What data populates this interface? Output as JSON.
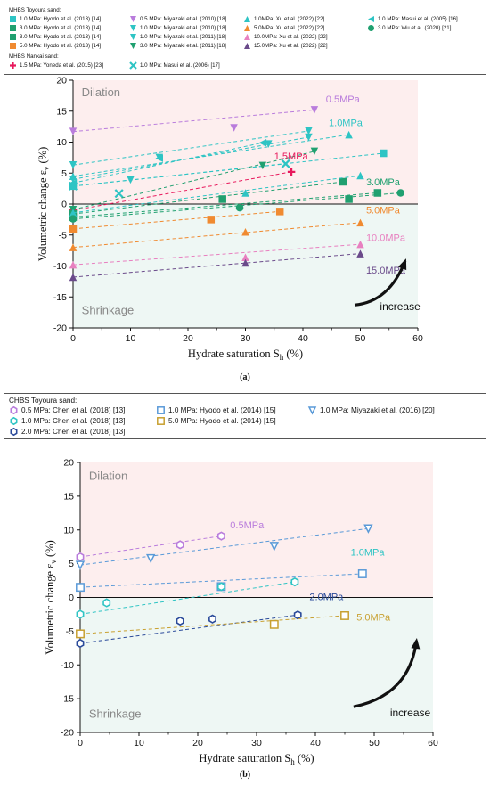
{
  "figure_a": {
    "panel_label": "(a)",
    "legend": {
      "group1_title": "MHBS Toyoura sand:",
      "group2_title": "MHBS Nankai sand:",
      "entries": [
        {
          "label": "1.0 MPa: Hyodo et al. (2013) [14]",
          "marker": "square",
          "color": "#2ec4c4"
        },
        {
          "label": "3.0 MPa: Hyodo et al. (2013) [14]",
          "marker": "square",
          "color": "#20a070"
        },
        {
          "label": "3.0 MPa: Hyodo et al. (2013) [14]",
          "marker": "square",
          "color": "#20a070"
        },
        {
          "label": "5.0 MPa: Hyodo et al. (2013) [14]",
          "marker": "square",
          "color": "#f08a30"
        },
        {
          "label": "0.5 MPa: Miyazaki et al. (2010) [18]",
          "marker": "tri-down",
          "color": "#b97cdc"
        },
        {
          "label": "1.0 MPa: Miyazaki et al. (2010) [18]",
          "marker": "tri-down",
          "color": "#2ec4c4"
        },
        {
          "label": "1.0 MPa: Miyazaki et al. (2011) [18]",
          "marker": "tri-down",
          "color": "#2ec4c4"
        },
        {
          "label": "3.0 MPa: Miyazaki et al. (2011) [18]",
          "marker": "tri-down",
          "color": "#20a070"
        },
        {
          "label": "1.0MPa: Xu et al. (2022) [22]",
          "marker": "tri-up",
          "color": "#2ec4c4"
        },
        {
          "label": "5.0MPa: Xu et al. (2022) [22]",
          "marker": "tri-up",
          "color": "#f08a30"
        },
        {
          "label": "10.0MPa: Xu et al. (2022) [22]",
          "marker": "tri-up",
          "color": "#e880c0"
        },
        {
          "label": "15.0MPa: Xu et al. (2022) [22]",
          "marker": "tri-up",
          "color": "#6a4a8a"
        },
        {
          "label": "1.0 MPa: Masui et al. (2005) [16]",
          "marker": "tri-left",
          "color": "#2ec4c4"
        },
        {
          "label": "3.0 MPa: Wu et al. (2020) [21]",
          "marker": "circle",
          "color": "#20a070"
        },
        {
          "label": "1.5 MPa: Yoneda et al. (2015) [23]",
          "marker": "cross",
          "color": "#e8185c"
        },
        {
          "label": "1.0 MPa: Masui et al. (2006) [17]",
          "marker": "x",
          "color": "#2ec4c4"
        }
      ]
    },
    "chart_data": {
      "type": "scatter",
      "xlabel": "Hydrate saturation S",
      "xlabel_sub": "h",
      "xlabel_unit": " (%)",
      "ylabel": "Volumetric change ε",
      "ylabel_sub": "v",
      "ylabel_unit": " (%)",
      "xlim": [
        0,
        60
      ],
      "ylim": [
        -20,
        20
      ],
      "xticks": [
        0,
        10,
        20,
        30,
        40,
        50,
        60
      ],
      "yticks": [
        -20,
        -15,
        -10,
        -5,
        0,
        5,
        10,
        15,
        20
      ],
      "region_labels": {
        "top": "Dilation",
        "bottom": "Shrinkage"
      },
      "arrow_label": "increase",
      "region_colors": {
        "top": "#fdeeee",
        "bottom": "#eef7f4"
      },
      "series": [
        {
          "name": "0.5 MPa: Miyazaki et al. (2010) [18]",
          "marker": "tri-down",
          "color": "#b97cdc",
          "x": [
            0,
            28,
            42
          ],
          "y": [
            11.7,
            12.3,
            15.2
          ]
        },
        {
          "name": "1.0 MPa: Miyazaki et al. (2010) [18]",
          "marker": "tri-down",
          "color": "#2ec4c4",
          "x": [
            0,
            15,
            34,
            41
          ],
          "y": [
            6.3,
            7.5,
            9.7,
            11.8
          ]
        },
        {
          "name": "1.0 MPa: Hyodo et al. (2013) [14]",
          "marker": "square",
          "color": "#2ec4c4",
          "x": [
            0,
            54
          ],
          "y": [
            2.9,
            8.2
          ]
        },
        {
          "name": "1.0 MPa: Miyazaki et al. (2011) [18]",
          "marker": "tri-down",
          "color": "#2ec4c4",
          "x": [
            0,
            10,
            41
          ],
          "y": [
            4.0,
            3.9,
            10.8
          ]
        },
        {
          "name": "1.0MPa: Xu et al. (2022) [22]",
          "marker": "tri-up",
          "color": "#2ec4c4",
          "x": [
            0,
            48
          ],
          "y": [
            4.5,
            11.2
          ]
        },
        {
          "name": "1.0 MPa: Masui et al. (2005) [16]",
          "marker": "tri-left",
          "color": "#2ec4c4",
          "x": [
            0,
            15,
            33
          ],
          "y": [
            3.4,
            7.4,
            9.9
          ]
        },
        {
          "name": "1.0 MPa: Masui et al. (2006) [17]",
          "marker": "x",
          "color": "#2ec4c4",
          "x": [
            0,
            8,
            37
          ],
          "y": [
            2.9,
            1.7,
            6.5
          ]
        },
        {
          "name": "1.5 MPa: Yoneda et al. (2015) [23]",
          "marker": "cross",
          "color": "#e8185c",
          "x": [
            0,
            38
          ],
          "y": [
            -1.0,
            5.2
          ]
        },
        {
          "name": "3.0 MPa: Miyazaki et al. (2011) [18]",
          "marker": "tri-down",
          "color": "#20a070",
          "x": [
            0,
            33,
            42
          ],
          "y": [
            -0.9,
            6.2,
            8.5
          ]
        },
        {
          "name": "3.0 MPa: Hyodo et al. (2013) [14]",
          "marker": "square",
          "color": "#20a070",
          "x": [
            0,
            26,
            47
          ],
          "y": [
            -1.6,
            0.8,
            3.6
          ]
        },
        {
          "name": "3.0 MPa: Hyodo et al. (2013) [14] (b)",
          "marker": "square",
          "color": "#20a070",
          "x": [
            0,
            48,
            53
          ],
          "y": [
            -2.1,
            0.8,
            1.8
          ]
        },
        {
          "name": "1.0MPa: Xu et al. (2022) [22] (b)",
          "marker": "tri-up",
          "color": "#2ec4c4",
          "x": [
            0,
            30,
            50
          ],
          "y": [
            -1.4,
            1.8,
            4.6
          ]
        },
        {
          "name": "3.0 MPa: Wu et al. (2020) [21]",
          "marker": "circle",
          "color": "#20a070",
          "x": [
            0,
            29,
            57
          ],
          "y": [
            -2.4,
            -0.6,
            1.8
          ]
        },
        {
          "name": "5.0 MPa: Hyodo et al. (2013) [14]",
          "marker": "square",
          "color": "#f08a30",
          "x": [
            0,
            24,
            36
          ],
          "y": [
            -4.0,
            -2.5,
            -1.2
          ]
        },
        {
          "name": "5.0MPa: Xu et al. (2022) [22]",
          "marker": "tri-up",
          "color": "#f08a30",
          "x": [
            0,
            30,
            50
          ],
          "y": [
            -7.0,
            -4.5,
            -3.0
          ]
        },
        {
          "name": "10.0MPa: Xu et al. (2022) [22]",
          "marker": "tri-up",
          "color": "#e880c0",
          "x": [
            0,
            30,
            50
          ],
          "y": [
            -9.8,
            -8.6,
            -6.5
          ]
        },
        {
          "name": "15.0MPa: Xu et al. (2022) [22]",
          "marker": "tri-up",
          "color": "#6a4a8a",
          "x": [
            0,
            30,
            50
          ],
          "y": [
            -11.8,
            -9.5,
            -8.0
          ]
        }
      ],
      "annotations": [
        {
          "text": "0.5MPa",
          "x": 44,
          "y": 16.4,
          "color": "#b97cdc"
        },
        {
          "text": "1.0MPa",
          "x": 44.5,
          "y": 12.6,
          "color": "#2ec4c4"
        },
        {
          "text": "1.5MPa",
          "x": 35,
          "y": 7.2,
          "color": "#e8185c"
        },
        {
          "text": "3.0MPa",
          "x": 51,
          "y": 3.0,
          "color": "#20a070"
        },
        {
          "text": "5.0MPa",
          "x": 51,
          "y": -1.5,
          "color": "#f08a30"
        },
        {
          "text": "10.0MPa",
          "x": 51,
          "y": -6.0,
          "color": "#e880c0"
        },
        {
          "text": "15.0MPa",
          "x": 51,
          "y": -11.2,
          "color": "#6a4a8a"
        }
      ]
    }
  },
  "figure_b": {
    "panel_label": "(b)",
    "legend": {
      "group_title": "CHBS Toyoura sand:",
      "entries": [
        {
          "label": "0.5 MPa: Chen et al. (2018) [13]",
          "marker": "hexagon",
          "color": "#b97cdc"
        },
        {
          "label": "1.0 MPa: Chen et al. (2018) [13]",
          "marker": "hexagon",
          "color": "#2ec4c4"
        },
        {
          "label": "2.0 MPa: Chen et al. (2018) [13]",
          "marker": "hexagon",
          "color": "#2a4a9a"
        },
        {
          "label": "1.0 MPa: Hyodo et al. (2014) [15]",
          "marker": "square-open",
          "color": "#5a9ad8"
        },
        {
          "label": "5.0 MPa: Hyodo et al. (2014) [15]",
          "marker": "square-open",
          "color": "#c8a030"
        },
        {
          "label": "1.0 MPa: Miyazaki et al. (2016) [20]",
          "marker": "tri-down-open",
          "color": "#5a9ad8"
        }
      ]
    },
    "chart_data": {
      "type": "scatter",
      "xlabel": "Hydrate saturation S",
      "xlabel_sub": "h",
      "xlabel_unit": " (%)",
      "ylabel": "Volumetric change ε",
      "ylabel_sub": "v",
      "ylabel_unit": " (%)",
      "xlim": [
        0,
        60
      ],
      "ylim": [
        -20,
        20
      ],
      "xticks": [
        0,
        10,
        20,
        30,
        40,
        50,
        60
      ],
      "yticks": [
        -20,
        -15,
        -10,
        -5,
        0,
        5,
        10,
        15,
        20
      ],
      "region_labels": {
        "top": "Dilation",
        "bottom": "Shrinkage"
      },
      "arrow_label": "increase",
      "region_colors": {
        "top": "#fdeeee",
        "bottom": "#eef7f4"
      },
      "series": [
        {
          "name": "0.5 MPa: Chen et al. (2018) [13]",
          "marker": "hexagon",
          "color": "#b97cdc",
          "x": [
            0,
            17,
            24
          ],
          "y": [
            6.0,
            7.8,
            9.1
          ]
        },
        {
          "name": "1.0 MPa: Miyazaki et al. (2016) [20]",
          "marker": "tri-down-open",
          "color": "#5a9ad8",
          "x": [
            0,
            12,
            33,
            49
          ],
          "y": [
            4.8,
            5.8,
            7.6,
            10.2
          ]
        },
        {
          "name": "1.0 MPa: Hyodo et al. (2014) [15]",
          "marker": "square-open",
          "color": "#5a9ad8",
          "x": [
            0,
            24,
            48
          ],
          "y": [
            1.5,
            1.6,
            3.5
          ]
        },
        {
          "name": "1.0 MPa: Chen et al. (2018) [13]",
          "marker": "hexagon",
          "color": "#2ec4c4",
          "x": [
            0,
            4.5,
            24,
            36.5
          ],
          "y": [
            -2.5,
            -0.8,
            1.6,
            2.3
          ]
        },
        {
          "name": "2.0 MPa: Chen et al. (2018) [13]",
          "marker": "hexagon",
          "color": "#2a4a9a",
          "x": [
            0,
            17,
            22.5,
            37
          ],
          "y": [
            -6.8,
            -3.5,
            -3.2,
            -2.6
          ]
        },
        {
          "name": "5.0 MPa: Hyodo et al. (2014) [15]",
          "marker": "square-open",
          "color": "#c8a030",
          "x": [
            0,
            33,
            45
          ],
          "y": [
            -5.4,
            -4.0,
            -2.7
          ]
        }
      ],
      "annotations": [
        {
          "text": "0.5MPa",
          "x": 25.5,
          "y": 10.2,
          "color": "#b97cdc"
        },
        {
          "text": "1.0MPa",
          "x": 46,
          "y": 6.2,
          "color": "#2ec4c4"
        },
        {
          "text": "2.0MPa",
          "x": 39,
          "y": -0.4,
          "color": "#2a4a9a"
        },
        {
          "text": "5.0MPa",
          "x": 47,
          "y": -3.4,
          "color": "#c8a030"
        }
      ]
    }
  }
}
